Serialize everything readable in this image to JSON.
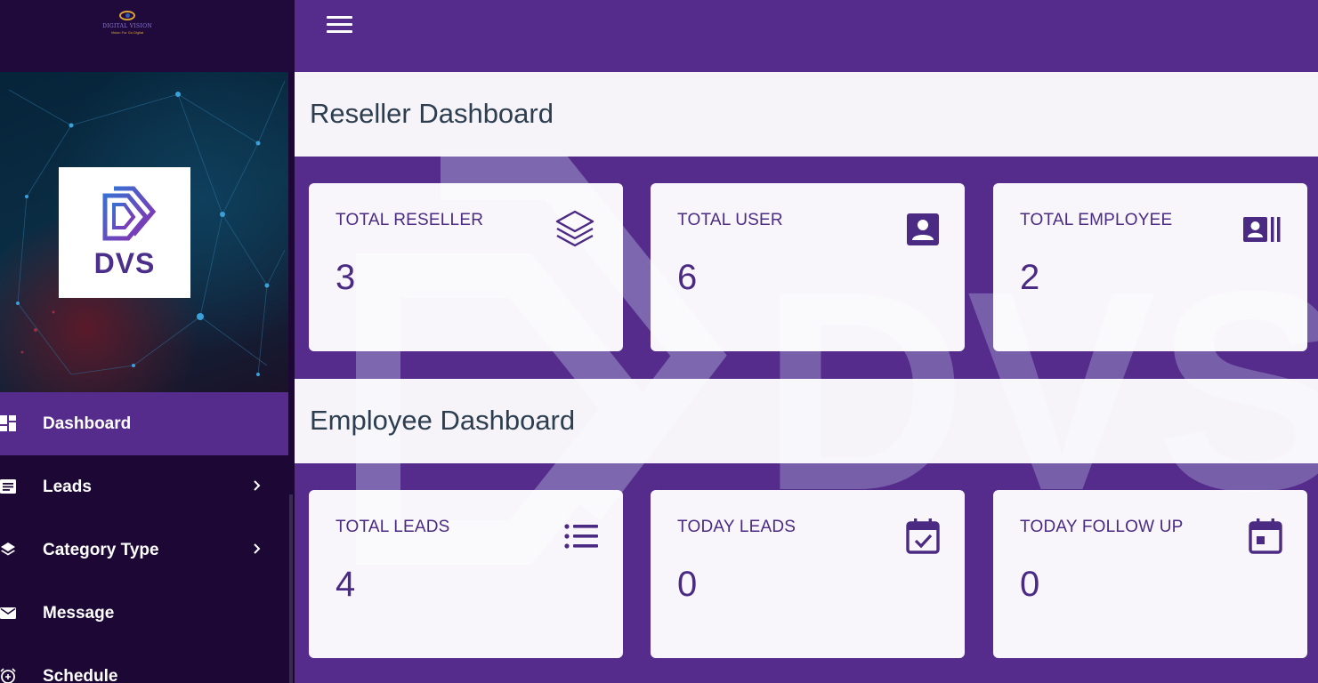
{
  "brand": {
    "small_name": "DIGITAL VISION",
    "tagline": "Vision For Go Digital",
    "logo_text": "DVS"
  },
  "sidebar": {
    "items": [
      {
        "label": "Dashboard",
        "icon": "dashboard-icon",
        "active": true,
        "has_submenu": false
      },
      {
        "label": "Leads",
        "icon": "leads-list-icon",
        "active": false,
        "has_submenu": true
      },
      {
        "label": "Category Type",
        "icon": "layers-icon",
        "active": false,
        "has_submenu": true
      },
      {
        "label": "Message",
        "icon": "envelope-icon",
        "active": false,
        "has_submenu": false
      },
      {
        "label": "Schedule",
        "icon": "alarm-add-icon",
        "active": false,
        "has_submenu": false
      }
    ]
  },
  "reseller_section": {
    "title": "Reseller Dashboard",
    "cards": [
      {
        "label": "TOTAL RESELLER",
        "value": "3",
        "icon": "stack-icon"
      },
      {
        "label": "TOTAL USER",
        "value": "6",
        "icon": "user-box-icon"
      },
      {
        "label": "TOTAL EMPLOYEE",
        "value": "2",
        "icon": "employee-card-icon"
      }
    ]
  },
  "employee_section": {
    "title": "Employee Dashboard",
    "cards": [
      {
        "label": "TOTAL LEADS",
        "value": "4",
        "icon": "list-icon"
      },
      {
        "label": "TODAY LEADS",
        "value": "0",
        "icon": "calendar-check-icon"
      },
      {
        "label": "TODAY FOLLOW UP",
        "value": "0",
        "icon": "calendar-day-icon"
      }
    ]
  },
  "colors": {
    "primary": "#552b8c",
    "sidebar_bg": "#1c0735",
    "card_text": "#4a2a82",
    "title_text": "#2c3e50"
  }
}
